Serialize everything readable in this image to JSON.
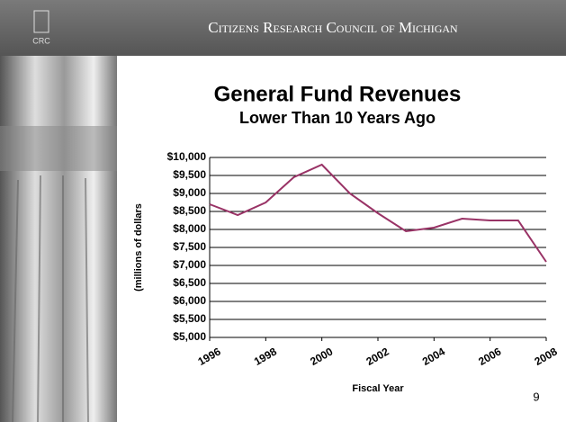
{
  "header": {
    "org": "Citizens Research Council of Michigan",
    "logo": "CRC"
  },
  "page_number": "9",
  "chart_data": {
    "type": "line",
    "title": "General Fund Revenues",
    "subtitle": "Lower Than 10 Years Ago",
    "y_label": "(millions of dollars",
    "x_label": "Fiscal Year",
    "x": [
      1996,
      1997,
      1998,
      1999,
      2000,
      2001,
      2002,
      2003,
      2004,
      2005,
      2006,
      2007,
      2008
    ],
    "series": [
      {
        "name": "General Fund Revenues",
        "color": "#993366",
        "values": [
          8700,
          8400,
          8750,
          9450,
          9800,
          9000,
          8450,
          7950,
          8050,
          8300,
          8250,
          8250,
          7100
        ]
      }
    ],
    "xlim": [
      1996,
      2008
    ],
    "xticks": [
      1996,
      1998,
      2000,
      2002,
      2004,
      2006,
      2008
    ],
    "ylim": [
      5000,
      10000
    ],
    "yticks": [
      {
        "value": 5000,
        "label": "$5,000"
      },
      {
        "value": 5500,
        "label": "$5,500"
      },
      {
        "value": 6000,
        "label": "$6,000"
      },
      {
        "value": 6500,
        "label": "$6,500"
      },
      {
        "value": 7000,
        "label": "$7,000"
      },
      {
        "value": 7500,
        "label": "$7,500"
      },
      {
        "value": 8000,
        "label": "$8,000"
      },
      {
        "value": 8500,
        "label": "$8,500"
      },
      {
        "value": 9000,
        "label": "$9,000"
      },
      {
        "value": 9500,
        "label": "$9,500"
      },
      {
        "value": 10000,
        "label": "$10,000"
      }
    ],
    "grid": true
  }
}
